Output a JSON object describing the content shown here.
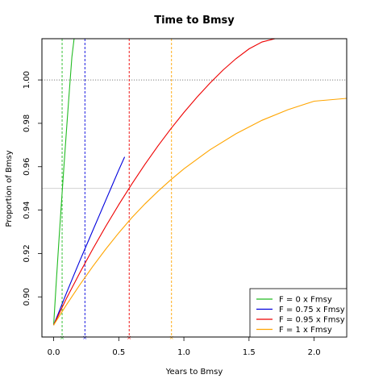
{
  "chart_data": {
    "type": "line",
    "title": "Time to Bmsy",
    "xlabel": "Years to Bmsy",
    "ylabel": "Proportion of Bmsy",
    "xlim": [
      -0.09,
      2.25
    ],
    "ylim": [
      0.8815,
      1.019
    ],
    "xticks": [
      0.0,
      0.5,
      1.0,
      1.5,
      2.0
    ],
    "xtick_labels": [
      "0.0",
      "0.5",
      "1.0",
      "1.5",
      "2.0"
    ],
    "yticks": [
      0.9,
      0.92,
      0.94,
      0.96,
      0.98,
      1.0
    ],
    "ytick_labels": [
      "0.90",
      "0.92",
      "0.94",
      "0.96",
      "0.98",
      "1.00"
    ],
    "reference_lines": [
      {
        "orientation": "horizontal",
        "y": 1.0,
        "style": "dotted",
        "color": "#555555"
      },
      {
        "orientation": "horizontal",
        "y": 0.95,
        "style": "solid",
        "color": "#cccccc"
      }
    ],
    "series": [
      {
        "name": "F = 0 x Fmsy",
        "color": "#22bb22",
        "x": [
          0.0,
          0.02,
          0.04,
          0.06,
          0.08,
          0.1,
          0.12,
          0.14,
          0.157
        ],
        "y": [
          0.887,
          0.9067,
          0.9255,
          0.9435,
          0.961,
          0.978,
          0.9945,
          1.0105,
          1.019
        ],
        "marker_x": 0.065
      },
      {
        "name": "F = 0.75 x Fmsy",
        "color": "#0000dd",
        "x": [
          0.0,
          0.05,
          0.1,
          0.15,
          0.2,
          0.25,
          0.3,
          0.35,
          0.4,
          0.45,
          0.5,
          0.545
        ],
        "y": [
          0.887,
          0.8945,
          0.902,
          0.9093,
          0.9165,
          0.9235,
          0.9305,
          0.9375,
          0.9445,
          0.9515,
          0.9585,
          0.9645
        ],
        "marker_x": 0.24
      },
      {
        "name": "F = 0.95 x Fmsy",
        "color": "#ee0000",
        "x": [
          0.0,
          0.1,
          0.2,
          0.3,
          0.4,
          0.5,
          0.6,
          0.7,
          0.8,
          0.9,
          1.0,
          1.1,
          1.2,
          1.3,
          1.4,
          1.5,
          1.6,
          1.7,
          1.72
        ],
        "y": [
          0.887,
          0.8995,
          0.911,
          0.922,
          0.9325,
          0.9425,
          0.952,
          0.961,
          0.9695,
          0.9775,
          0.985,
          0.992,
          0.9985,
          1.0045,
          1.0098,
          1.0143,
          1.0175,
          1.019,
          1.019
        ],
        "marker_x": 0.58
      },
      {
        "name": "F = 1 x Fmsy",
        "color": "#ffa500",
        "x": [
          0.0,
          0.1,
          0.2,
          0.3,
          0.4,
          0.5,
          0.6,
          0.7,
          0.8,
          0.9,
          1.0,
          1.2,
          1.4,
          1.6,
          1.8,
          2.0,
          2.25
        ],
        "y": [
          0.887,
          0.8965,
          0.9055,
          0.914,
          0.922,
          0.9295,
          0.9365,
          0.9428,
          0.9486,
          0.954,
          0.959,
          0.9678,
          0.9752,
          0.9814,
          0.9863,
          0.9902,
          0.9915
        ],
        "marker_x": 0.905
      }
    ],
    "legend": {
      "placement": "bottom-right",
      "entries": [
        "F = 0 x Fmsy",
        "F = 0.75 x Fmsy",
        "F = 0.95 x Fmsy",
        "F = 1 x Fmsy"
      ]
    }
  }
}
